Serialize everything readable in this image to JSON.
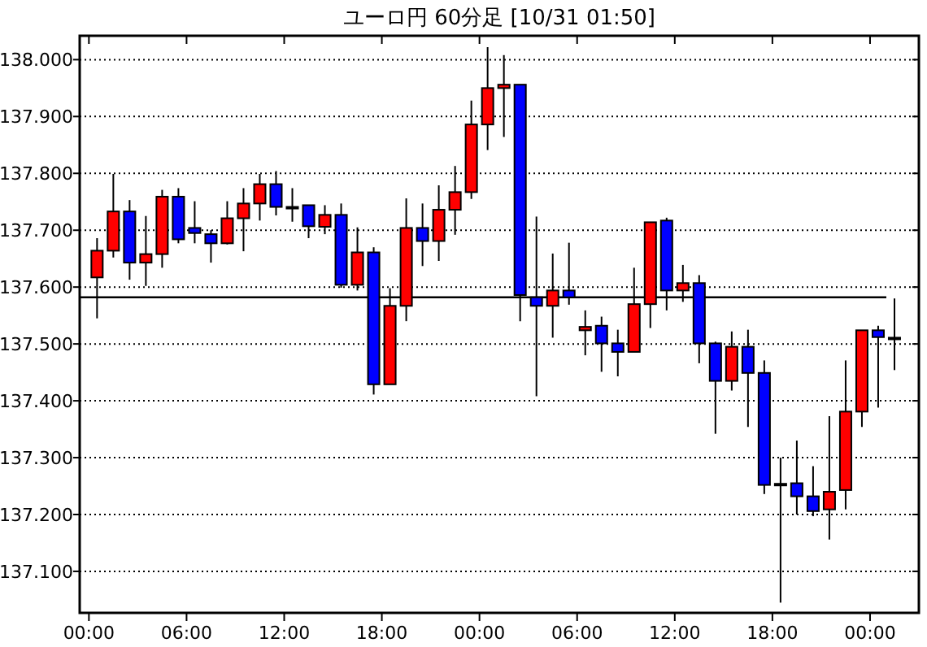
{
  "chart_data": {
    "type": "candlestick",
    "title": "ユーロ円 60分足 [10/31 01:50]",
    "x": [
      "--10-29T00:30",
      "--10-29T01:30",
      "--10-29T02:30",
      "--10-29T03:30",
      "--10-29T04:30",
      "--10-29T05:30",
      "--10-29T06:30",
      "--10-29T07:30",
      "--10-29T08:30",
      "--10-29T09:30",
      "--10-29T10:30",
      "--10-29T11:30",
      "--10-29T12:30",
      "--10-29T13:30",
      "--10-29T14:30",
      "--10-29T15:30",
      "--10-29T16:30",
      "--10-29T17:30",
      "--10-29T18:30",
      "--10-29T19:30",
      "--10-29T20:30",
      "--10-29T21:30",
      "--10-29T22:30",
      "--10-29T23:30",
      "--10-30T00:30",
      "--10-30T01:30",
      "--10-30T02:30",
      "--10-30T03:30",
      "--10-30T04:30",
      "--10-30T05:30",
      "--10-30T06:30",
      "--10-30T07:30",
      "--10-30T08:30",
      "--10-30T09:30",
      "--10-30T10:30",
      "--10-30T11:30",
      "--10-30T12:30",
      "--10-30T13:30",
      "--10-30T14:30",
      "--10-30T15:30",
      "--10-30T16:30",
      "--10-30T17:30",
      "--10-30T18:30",
      "--10-30T19:30",
      "--10-30T20:30",
      "--10-30T21:30",
      "--10-30T22:30",
      "--10-30T23:30",
      "--10-31T00:30",
      "--10-31T01:30"
    ],
    "ohlc": [
      [
        137.617,
        137.686,
        137.545,
        137.664
      ],
      [
        137.664,
        137.799,
        137.652,
        137.733
      ],
      [
        137.733,
        137.753,
        137.613,
        137.643
      ],
      [
        137.643,
        137.725,
        137.602,
        137.658
      ],
      [
        137.658,
        137.771,
        137.634,
        137.759
      ],
      [
        137.759,
        137.774,
        137.677,
        137.684
      ],
      [
        137.704,
        137.751,
        137.677,
        137.695
      ],
      [
        137.693,
        137.7,
        137.643,
        137.677
      ],
      [
        137.677,
        137.751,
        137.675,
        137.721
      ],
      [
        137.721,
        137.774,
        137.663,
        137.747
      ],
      [
        137.747,
        137.799,
        137.717,
        137.781
      ],
      [
        137.781,
        137.804,
        137.726,
        137.741
      ],
      [
        137.741,
        137.774,
        137.715,
        137.741
      ],
      [
        137.744,
        137.744,
        137.686,
        137.707
      ],
      [
        137.706,
        137.744,
        137.693,
        137.727
      ],
      [
        137.727,
        137.747,
        137.599,
        137.604
      ],
      [
        137.604,
        137.705,
        137.594,
        137.661
      ],
      [
        137.661,
        137.67,
        137.411,
        137.429
      ],
      [
        137.429,
        137.598,
        137.429,
        137.567
      ],
      [
        137.567,
        137.756,
        137.54,
        137.704
      ],
      [
        137.704,
        137.747,
        137.637,
        137.681
      ],
      [
        137.681,
        137.779,
        137.646,
        137.736
      ],
      [
        137.736,
        137.813,
        137.692,
        137.767
      ],
      [
        137.767,
        137.928,
        137.755,
        137.886
      ],
      [
        137.886,
        138.022,
        137.841,
        137.95
      ],
      [
        137.95,
        138.008,
        137.864,
        137.956
      ],
      [
        137.956,
        137.956,
        137.54,
        137.586
      ],
      [
        137.582,
        137.724,
        137.408,
        137.567
      ],
      [
        137.567,
        137.659,
        137.511,
        137.594
      ],
      [
        137.594,
        137.678,
        137.569,
        137.582
      ],
      [
        137.524,
        137.559,
        137.48,
        137.53
      ],
      [
        137.532,
        137.548,
        137.451,
        137.501
      ],
      [
        137.501,
        137.525,
        137.443,
        137.486
      ],
      [
        137.486,
        137.634,
        137.486,
        137.57
      ],
      [
        137.57,
        137.714,
        137.528,
        137.714
      ],
      [
        137.717,
        137.722,
        137.559,
        137.594
      ],
      [
        137.594,
        137.639,
        137.574,
        137.607
      ],
      [
        137.607,
        137.621,
        137.466,
        137.501
      ],
      [
        137.501,
        137.504,
        137.342,
        137.435
      ],
      [
        137.435,
        137.522,
        137.418,
        137.495
      ],
      [
        137.495,
        137.525,
        137.354,
        137.449
      ],
      [
        137.449,
        137.471,
        137.236,
        137.252
      ],
      [
        137.254,
        137.3,
        137.045,
        137.254
      ],
      [
        137.255,
        137.33,
        137.2,
        137.232
      ],
      [
        137.232,
        137.285,
        137.197,
        137.206
      ],
      [
        137.209,
        137.373,
        137.156,
        137.24
      ],
      [
        137.243,
        137.471,
        137.209,
        137.381
      ],
      [
        137.381,
        137.524,
        137.354,
        137.524
      ],
      [
        137.524,
        137.532,
        137.388,
        137.512
      ],
      [
        137.511,
        137.58,
        137.454,
        137.511
      ]
    ],
    "colors": [
      "#ff0000",
      "#ff0000",
      "#0000ff",
      "#ff0000",
      "#ff0000",
      "#0000ff",
      "#0000ff",
      "#0000ff",
      "#ff0000",
      "#ff0000",
      "#ff0000",
      "#0000ff",
      "#0000ff",
      "#0000ff",
      "#ff0000",
      "#0000ff",
      "#ff0000",
      "#0000ff",
      "#ff0000",
      "#ff0000",
      "#0000ff",
      "#ff0000",
      "#ff0000",
      "#ff0000",
      "#ff0000",
      "#ff0000",
      "#0000ff",
      "#0000ff",
      "#ff0000",
      "#0000ff",
      "#ff0000",
      "#0000ff",
      "#0000ff",
      "#ff0000",
      "#ff0000",
      "#0000ff",
      "#ff0000",
      "#0000ff",
      "#0000ff",
      "#ff0000",
      "#0000ff",
      "#0000ff",
      "#0000ff",
      "#0000ff",
      "#0000ff",
      "#ff0000",
      "#ff0000",
      "#ff0000",
      "#0000ff",
      "#0000ff"
    ],
    "xlim": [
      "--10-28T23:26",
      "--10-31T03:00"
    ],
    "xticks": [
      {
        "value": "--10-29T00:00",
        "label": "00:00"
      },
      {
        "value": "--10-29T06:00",
        "label": "06:00"
      },
      {
        "value": "--10-29T12:00",
        "label": "12:00"
      },
      {
        "value": "--10-29T18:00",
        "label": "18:00"
      },
      {
        "value": "--10-30T00:00",
        "label": "00:00"
      },
      {
        "value": "--10-30T06:00",
        "label": "06:00"
      },
      {
        "value": "--10-30T12:00",
        "label": "12:00"
      },
      {
        "value": "--10-30T18:00",
        "label": "18:00"
      },
      {
        "value": "--10-31T00:00",
        "label": "00:00"
      }
    ],
    "ylim": [
      137.027,
      138.042
    ],
    "yticks": [
      {
        "value": 137.1,
        "label": "137.100"
      },
      {
        "value": 137.2,
        "label": "137.200"
      },
      {
        "value": 137.3,
        "label": "137.300"
      },
      {
        "value": 137.4,
        "label": "137.400"
      },
      {
        "value": 137.5,
        "label": "137.500"
      },
      {
        "value": 137.6,
        "label": "137.600"
      },
      {
        "value": 137.7,
        "label": "137.700"
      },
      {
        "value": 137.8,
        "label": "137.800"
      },
      {
        "value": 137.9,
        "label": "137.900"
      },
      {
        "value": 138.0,
        "label": "138.000"
      }
    ],
    "ref_lines": [
      {
        "axis": "y",
        "value": 137.582,
        "color": "#000000"
      }
    ],
    "grid": "y"
  }
}
